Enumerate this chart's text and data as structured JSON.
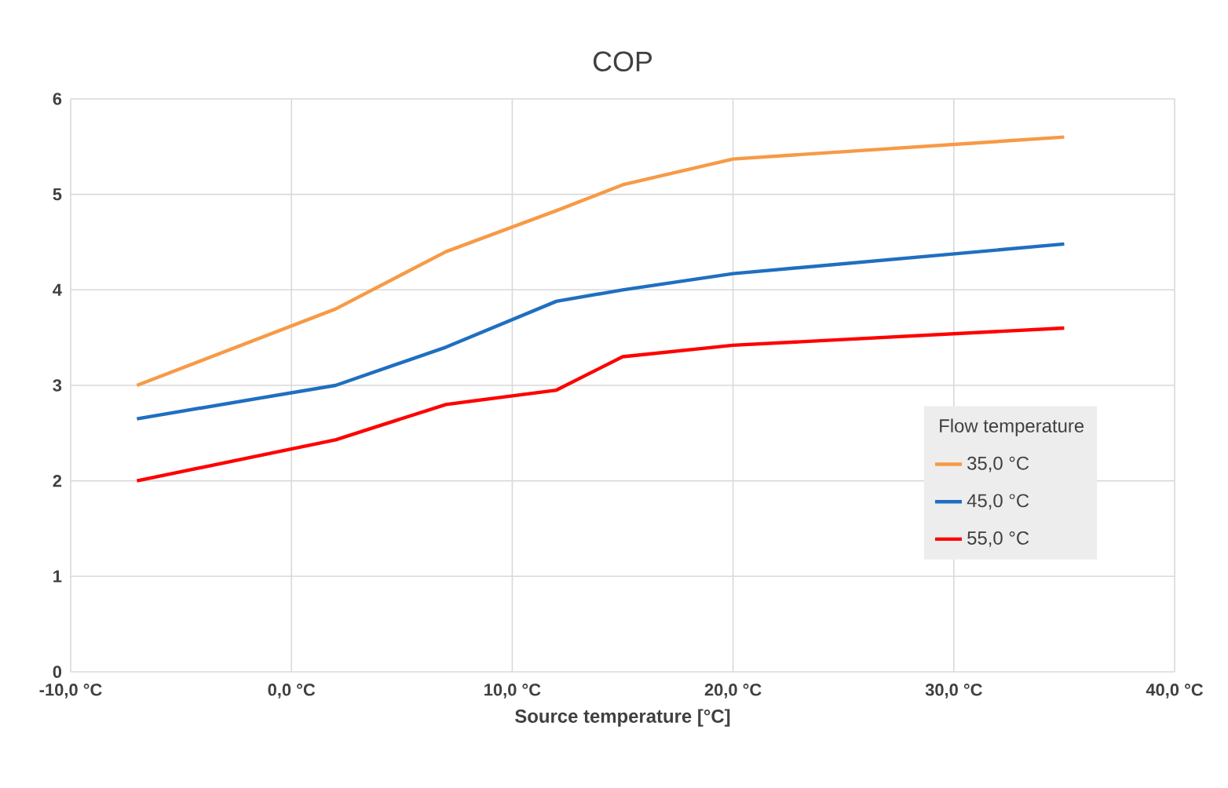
{
  "chart_data": {
    "type": "line",
    "title": "COP",
    "xlabel": "Source temperature [°C]",
    "legend_title": "Flow temperature",
    "x": [
      -7,
      2,
      7,
      12,
      15,
      20,
      35
    ],
    "series": [
      {
        "name": "35,0 °C",
        "color": "#f79a46",
        "values": [
          3.0,
          3.8,
          4.4,
          4.83,
          5.1,
          5.37,
          5.6
        ]
      },
      {
        "name": "45,0 °C",
        "color": "#1f6fc0",
        "values": [
          2.65,
          3.0,
          3.4,
          3.88,
          4.0,
          4.17,
          4.48
        ]
      },
      {
        "name": "55,0 °C",
        "color": "#ff0000",
        "values": [
          2.0,
          2.43,
          2.8,
          2.95,
          3.3,
          3.42,
          3.6
        ]
      }
    ],
    "xlim": [
      -10,
      40
    ],
    "ylim": [
      0,
      6
    ],
    "xticks": [
      {
        "value": -10,
        "label": "-10,0 °C"
      },
      {
        "value": 0,
        "label": "0,0 °C"
      },
      {
        "value": 10,
        "label": "10,0 °C"
      },
      {
        "value": 20,
        "label": "20,0 °C"
      },
      {
        "value": 30,
        "label": "30,0 °C"
      },
      {
        "value": 40,
        "label": "40,0 °C"
      }
    ],
    "yticks": [
      0,
      1,
      2,
      3,
      4,
      5,
      6
    ],
    "grid": true,
    "legend": "right",
    "marker": "none",
    "line_style": "solid"
  }
}
